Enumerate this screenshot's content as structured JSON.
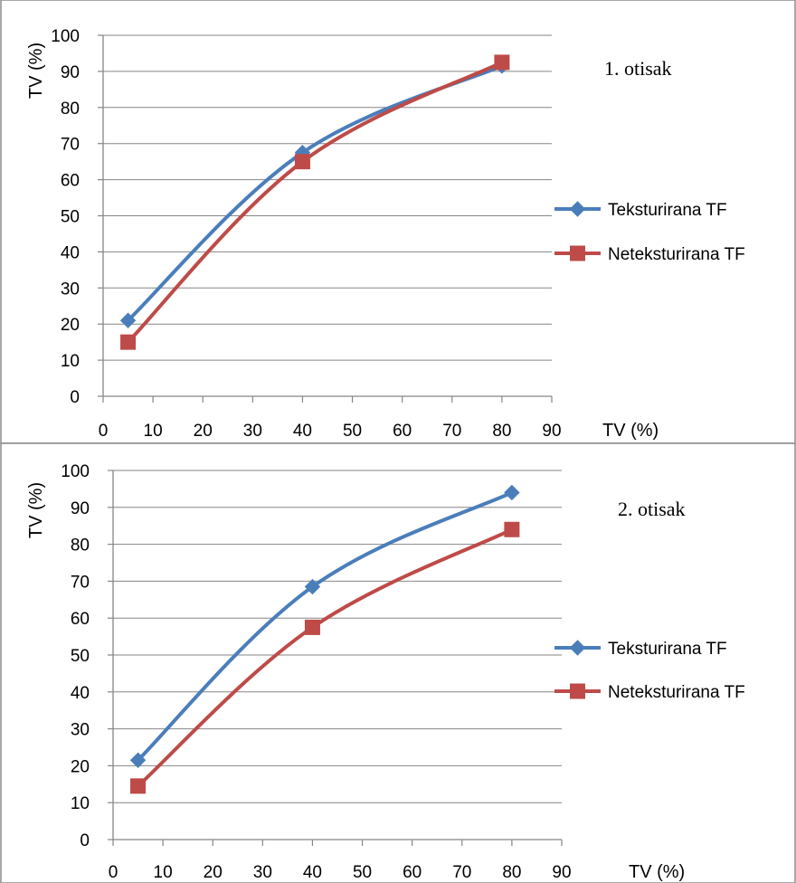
{
  "chart_data": [
    {
      "type": "line",
      "annotation": "1. otisak",
      "xlabel": "TV (%)",
      "ylabel": "TV (%)",
      "xlim": [
        0,
        90
      ],
      "ylim": [
        0,
        100
      ],
      "xticks": [
        0,
        10,
        20,
        30,
        40,
        50,
        60,
        70,
        80,
        90
      ],
      "yticks": [
        0,
        10,
        20,
        30,
        40,
        50,
        60,
        70,
        80,
        90,
        100
      ],
      "grid": "horizontal",
      "legend_position": "right",
      "series": [
        {
          "name": "Teksturirana TF",
          "color": "#4a7ebb",
          "marker": "diamond",
          "x": [
            5,
            40,
            80
          ],
          "y": [
            21,
            67.5,
            91.5
          ]
        },
        {
          "name": "Neteksturirana TF",
          "color": "#be4b48",
          "marker": "square",
          "x": [
            5,
            40,
            80
          ],
          "y": [
            15,
            65,
            92.5
          ]
        }
      ]
    },
    {
      "type": "line",
      "annotation": "2. otisak",
      "xlabel": "TV (%)",
      "ylabel": "TV (%)",
      "xlim": [
        0,
        90
      ],
      "ylim": [
        0,
        100
      ],
      "xticks": [
        0,
        10,
        20,
        30,
        40,
        50,
        60,
        70,
        80,
        90
      ],
      "yticks": [
        0,
        10,
        20,
        30,
        40,
        50,
        60,
        70,
        80,
        90,
        100
      ],
      "grid": "horizontal",
      "legend_position": "right",
      "series": [
        {
          "name": "Teksturirana TF",
          "color": "#4a7ebb",
          "marker": "diamond",
          "x": [
            5,
            40,
            80
          ],
          "y": [
            21.5,
            68.5,
            94
          ]
        },
        {
          "name": "Neteksturirana TF",
          "color": "#be4b48",
          "marker": "square",
          "x": [
            5,
            40,
            80
          ],
          "y": [
            14.5,
            57.5,
            84
          ]
        }
      ]
    }
  ]
}
